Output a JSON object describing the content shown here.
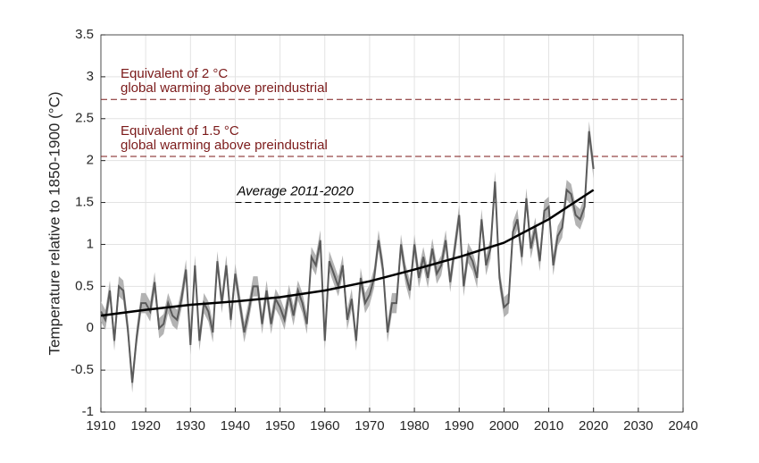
{
  "chart_data": {
    "type": "line",
    "ylabel": "Temperature relative to 1850-1900 (°C)",
    "xlim": [
      1910,
      2040
    ],
    "xticks": [
      1910,
      1920,
      1930,
      1940,
      1950,
      1960,
      1970,
      1980,
      1990,
      2000,
      2010,
      2020,
      2030,
      2040
    ],
    "ylim": [
      -1,
      3.5
    ],
    "yticks": [
      -1,
      -0.5,
      0,
      0.5,
      1,
      1.5,
      2,
      2.5,
      3,
      3.5
    ],
    "grid": true,
    "x": [
      1910,
      1911,
      1912,
      1913,
      1914,
      1915,
      1916,
      1917,
      1918,
      1919,
      1920,
      1921,
      1922,
      1923,
      1924,
      1925,
      1926,
      1927,
      1928,
      1929,
      1930,
      1931,
      1932,
      1933,
      1934,
      1935,
      1936,
      1937,
      1938,
      1939,
      1940,
      1941,
      1942,
      1943,
      1944,
      1945,
      1946,
      1947,
      1948,
      1949,
      1950,
      1951,
      1952,
      1953,
      1954,
      1955,
      1956,
      1957,
      1958,
      1959,
      1960,
      1961,
      1962,
      1963,
      1964,
      1965,
      1966,
      1967,
      1968,
      1969,
      1970,
      1971,
      1972,
      1973,
      1974,
      1975,
      1976,
      1977,
      1978,
      1979,
      1980,
      1981,
      1982,
      1983,
      1984,
      1985,
      1986,
      1987,
      1988,
      1989,
      1990,
      1991,
      1992,
      1993,
      1994,
      1995,
      1996,
      1997,
      1998,
      1999,
      2000,
      2001,
      2002,
      2003,
      2004,
      2005,
      2006,
      2007,
      2008,
      2009,
      2010,
      2011,
      2012,
      2013,
      2014,
      2015,
      2016,
      2017,
      2018,
      2019,
      2020
    ],
    "series": [
      {
        "color": "#5a5a5a",
        "band_color": "#b3b3b3",
        "error": 0.12,
        "values": [
          0.2,
          0.1,
          0.45,
          -0.15,
          0.5,
          0.45,
          0.0,
          -0.65,
          -0.1,
          0.3,
          0.3,
          0.2,
          0.55,
          0.0,
          0.05,
          0.3,
          0.15,
          0.1,
          0.35,
          0.7,
          -0.2,
          0.75,
          -0.15,
          0.3,
          0.2,
          -0.05,
          0.8,
          0.3,
          0.75,
          0.1,
          0.65,
          0.3,
          -0.05,
          0.2,
          0.5,
          0.5,
          0.05,
          0.45,
          0.05,
          0.35,
          0.25,
          0.1,
          0.4,
          0.15,
          0.45,
          0.3,
          0.05,
          0.85,
          0.75,
          1.05,
          -0.15,
          0.8,
          0.65,
          0.5,
          0.75,
          0.1,
          0.35,
          -0.15,
          0.6,
          0.3,
          0.4,
          0.6,
          1.05,
          0.7,
          -0.05,
          0.3,
          0.3,
          1.0,
          0.65,
          0.45,
          1.0,
          0.6,
          0.85,
          0.6,
          0.95,
          0.65,
          0.75,
          1.05,
          0.55,
          0.95,
          1.35,
          0.5,
          0.9,
          0.8,
          0.6,
          1.3,
          0.75,
          0.95,
          1.75,
          0.6,
          0.25,
          0.3,
          1.15,
          1.3,
          0.85,
          1.55,
          0.95,
          1.2,
          0.8,
          1.4,
          1.45,
          0.75,
          1.1,
          1.2,
          1.65,
          1.6,
          1.35,
          1.3,
          1.45,
          2.35,
          1.9
        ]
      },
      {
        "color": "#000000",
        "x": [
          1910,
          1920,
          1930,
          1940,
          1950,
          1960,
          1970,
          1980,
          1990,
          2000,
          2010,
          2020
        ],
        "values": [
          0.15,
          0.22,
          0.28,
          0.32,
          0.37,
          0.45,
          0.56,
          0.7,
          0.85,
          1.02,
          1.3,
          1.65
        ]
      }
    ],
    "reference_lines": [
      {
        "y": 2.73,
        "x": [
          1910,
          2040
        ],
        "color": "#7b1a1a",
        "labels": [
          "Equivalent of 2 °C",
          "global warming above preindustrial"
        ]
      },
      {
        "y": 2.05,
        "x": [
          1910,
          2040
        ],
        "color": "#7b1a1a",
        "labels": [
          "Equivalent of 1.5 °C",
          "global warming above preindustrial"
        ]
      },
      {
        "y": 1.5,
        "x": [
          1940,
          2020
        ],
        "color": "#000000",
        "italic": true,
        "labels": [
          "Average 2011-2020"
        ]
      }
    ]
  }
}
